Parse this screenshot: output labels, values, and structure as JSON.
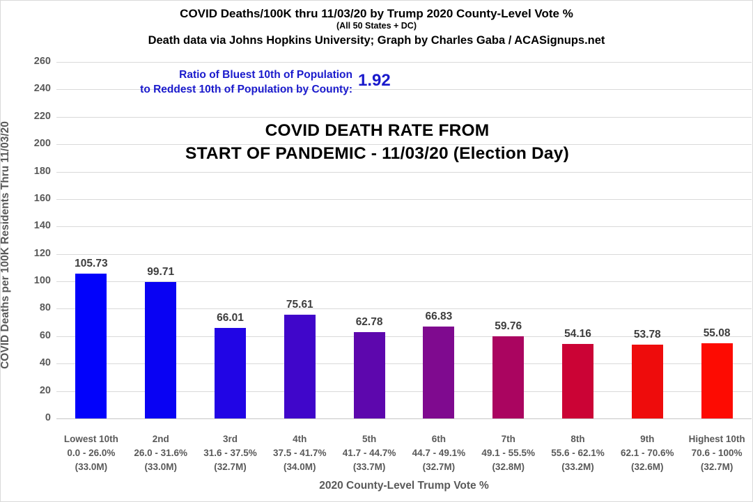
{
  "header": {
    "title": "COVID Deaths/100K thru 11/03/20 by Trump 2020 County-Level Vote %",
    "subtitle": "(All 50 States + DC)",
    "credit": "Death data via Johns Hopkins University; Graph by Charles Gaba / ACASignups.net"
  },
  "annotation": {
    "ratio_label_line1": "Ratio of Bluest 10th of Population",
    "ratio_label_line2": "to Reddest 10th of Population by County:",
    "ratio_value": "1.92",
    "text_color": "#1a1acc"
  },
  "chart_title": {
    "line1": "COVID DEATH RATE FROM",
    "line2": "START OF PANDEMIC - 11/03/20 (Election Day)"
  },
  "chart_data": {
    "type": "bar",
    "title": "COVID DEATH RATE FROM START OF PANDEMIC - 11/03/20 (Election Day)",
    "xlabel": "2020 County-Level Trump Vote %",
    "ylabel": "COVID Deaths per 100K Residents Thru 11/03/20",
    "ylim": [
      0,
      260
    ],
    "yticks": [
      0,
      20,
      40,
      60,
      80,
      100,
      120,
      140,
      160,
      180,
      200,
      220,
      240,
      260
    ],
    "grid": true,
    "legend": false,
    "categories": [
      {
        "label": "Lowest 10th",
        "range": "0.0 - 26.0%",
        "population": "(33.0M)"
      },
      {
        "label": "2nd",
        "range": "26.0 - 31.6%",
        "population": "(33.0M)"
      },
      {
        "label": "3rd",
        "range": "31.6 - 37.5%",
        "population": "(32.7M)"
      },
      {
        "label": "4th",
        "range": "37.5 - 41.7%",
        "population": "(34.0M)"
      },
      {
        "label": "5th",
        "range": "41.7 - 44.7%",
        "population": "(33.7M)"
      },
      {
        "label": "6th",
        "range": "44.7 - 49.1%",
        "population": "(32.7M)"
      },
      {
        "label": "7th",
        "range": "49.1 - 55.5%",
        "population": "(32.8M)"
      },
      {
        "label": "8th",
        "range": "55.6 - 62.1%",
        "population": "(33.2M)"
      },
      {
        "label": "9th",
        "range": "62.1 - 70.6%",
        "population": "(32.6M)"
      },
      {
        "label": "Highest 10th",
        "range": "70.6 - 100%",
        "population": "(32.7M)"
      }
    ],
    "values": [
      105.73,
      99.71,
      66.01,
      75.61,
      62.78,
      66.83,
      59.76,
      54.16,
      53.78,
      55.08
    ],
    "bar_colors": [
      "#0202fb",
      "#0902f3",
      "#2105e5",
      "#4006ca",
      "#5d07ad",
      "#7f0a8f",
      "#aa0560",
      "#cb0335",
      "#ee0c0c",
      "#fd0b02"
    ],
    "gridline_color": "#d9d9d9",
    "axis_text_color": "#595959",
    "value_label_color": "#3d3d3d"
  }
}
